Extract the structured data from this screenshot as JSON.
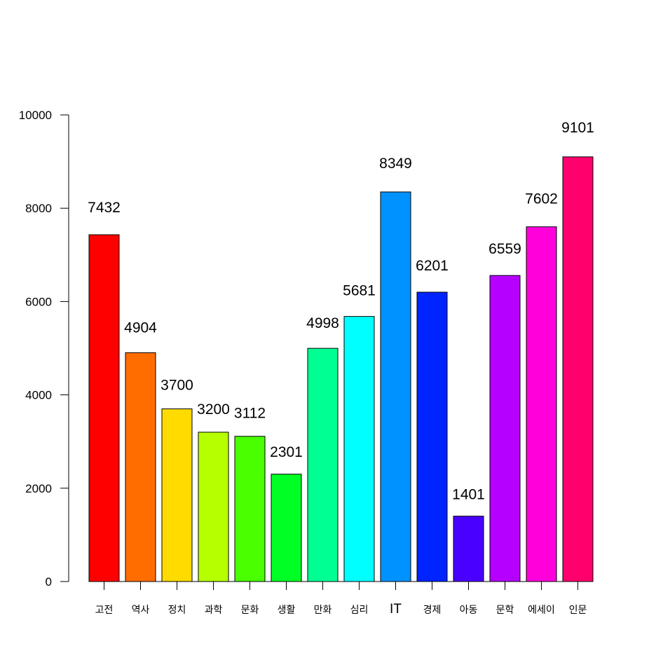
{
  "chart_data": {
    "type": "bar",
    "title": "",
    "xlabel": "",
    "ylabel": "",
    "categories": [
      "고전",
      "역사",
      "정치",
      "과학",
      "문화",
      "생활",
      "만화",
      "심리",
      "IT",
      "경제",
      "아동",
      "문학",
      "에세이",
      "인문"
    ],
    "values": [
      7432,
      4904,
      3700,
      3200,
      3112,
      2301,
      4998,
      5681,
      8349,
      6201,
      1401,
      6559,
      7602,
      9101
    ],
    "colors": [
      "#FF0000",
      "#FF6D00",
      "#FFDB00",
      "#B6FF00",
      "#49FF00",
      "#00FF24",
      "#00FF92",
      "#00FFFF",
      "#0092FF",
      "#0024FF",
      "#4900FF",
      "#B600FF",
      "#FF00DB",
      "#FF006D"
    ],
    "ylim": [
      0,
      10000
    ],
    "yticks": [
      0,
      2000,
      4000,
      6000,
      8000,
      10000
    ],
    "grid": false,
    "data_labels": true
  }
}
